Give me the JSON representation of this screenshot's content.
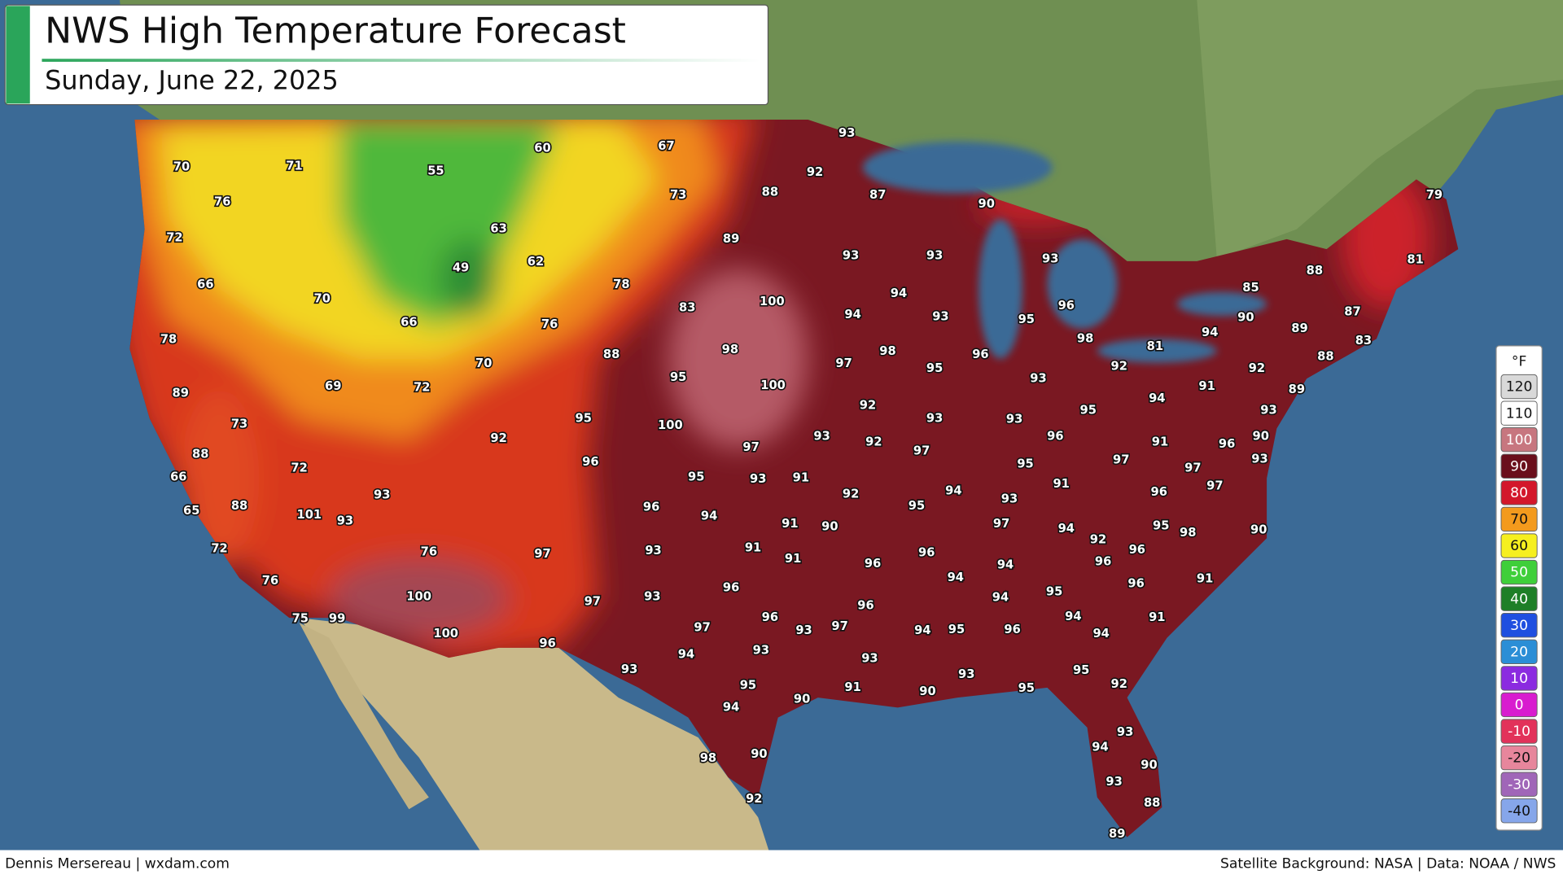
{
  "header": {
    "title": "NWS High Temperature Forecast",
    "subtitle": "Sunday, June 22, 2025"
  },
  "map": {
    "labels": [
      70,
      71,
      55,
      60,
      67,
      76,
      73,
      88,
      93,
      92,
      87,
      90,
      79,
      72,
      63,
      89,
      93,
      93,
      93,
      88,
      81,
      49,
      62,
      66,
      78,
      85,
      94,
      70,
      83,
      100,
      94,
      93,
      96,
      87,
      95,
      90,
      66,
      76,
      89,
      94,
      83,
      78,
      98,
      98,
      96,
      98,
      81,
      88,
      70,
      97,
      95,
      92,
      92,
      88,
      69,
      72,
      95,
      100,
      93,
      91,
      89,
      89,
      92,
      95,
      94,
      93,
      73,
      95,
      100,
      93,
      92,
      93,
      93,
      96,
      91,
      96,
      90,
      92,
      97,
      97,
      95,
      97,
      97,
      93,
      88,
      96,
      72,
      66,
      95,
      93,
      91,
      91,
      97,
      65,
      88,
      93,
      92,
      94,
      93,
      95,
      96,
      101,
      93,
      96,
      94,
      91,
      90,
      97,
      94,
      95,
      98,
      90,
      92,
      72,
      76,
      97,
      93,
      91,
      91,
      96,
      96,
      96,
      96,
      94,
      94,
      76,
      96,
      95,
      96,
      91,
      100,
      93,
      97,
      94,
      96,
      75,
      99,
      96,
      93,
      97,
      97,
      94,
      95,
      96,
      94,
      94,
      91,
      100,
      96,
      94,
      93,
      93,
      93,
      93,
      95,
      92,
      95,
      91,
      90,
      95,
      90,
      94,
      93,
      94,
      90,
      98,
      90,
      93,
      92,
      88,
      89
    ]
  },
  "legend": {
    "unit": "°F",
    "items": [
      {
        "value": 120,
        "color": "#d9d9d9"
      },
      {
        "value": 110,
        "color": "#ffffff"
      },
      {
        "value": 100,
        "color": "#c7767f"
      },
      {
        "value": 90,
        "color": "#6a0f1c"
      },
      {
        "value": 80,
        "color": "#d3172b"
      },
      {
        "value": 70,
        "color": "#f39a1d"
      },
      {
        "value": 60,
        "color": "#f6ef1f"
      },
      {
        "value": 50,
        "color": "#3fcf3a"
      },
      {
        "value": 40,
        "color": "#1e7f27"
      },
      {
        "value": 30,
        "color": "#1f4fe0"
      },
      {
        "value": 20,
        "color": "#2b8ed6"
      },
      {
        "value": 10,
        "color": "#8b2be0"
      },
      {
        "value": 0,
        "color": "#d81ccf"
      },
      {
        "value": -10,
        "color": "#e2325a"
      },
      {
        "value": -20,
        "color": "#e7869c"
      },
      {
        "value": -30,
        "color": "#a066b8"
      },
      {
        "value": -40,
        "color": "#86a6ea"
      }
    ]
  },
  "footer": {
    "credit": "Dennis Mersereau | wxdam.com",
    "source": "Satellite Background: NASA | Data: NOAA / NWS"
  }
}
